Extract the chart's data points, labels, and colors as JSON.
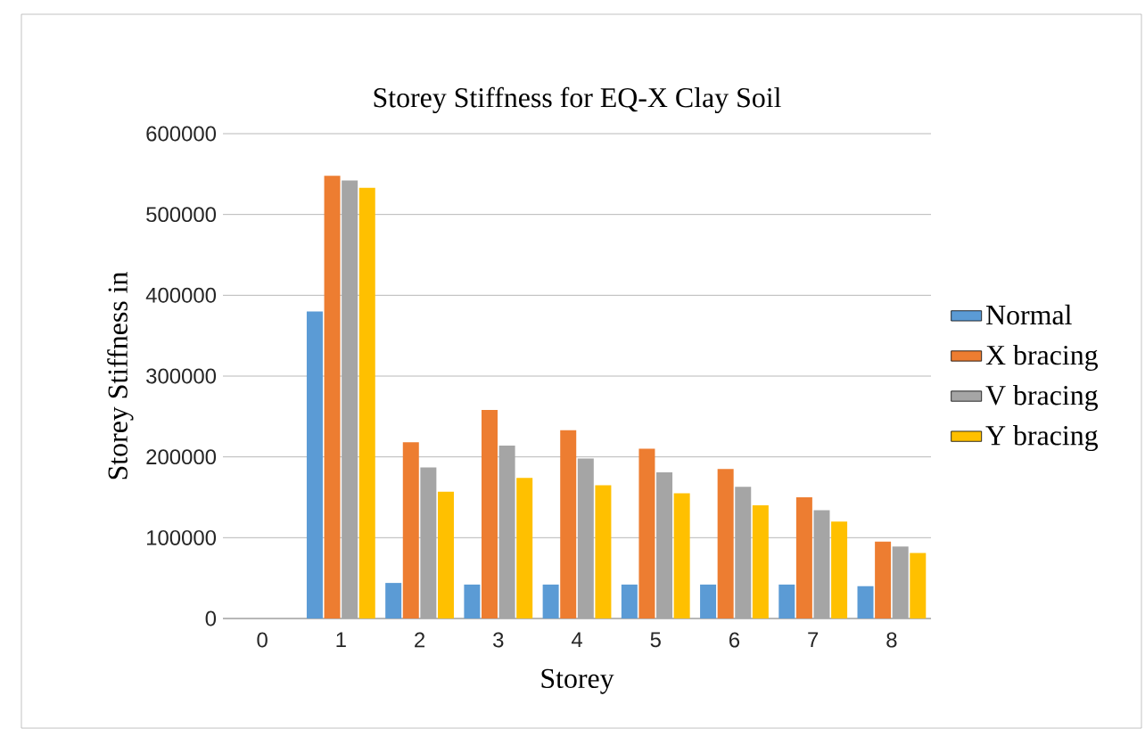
{
  "chart_data": {
    "type": "bar",
    "title": "Storey Stiffness for EQ-X Clay Soil",
    "xlabel": "Storey",
    "ylabel": "Storey Stiffness in",
    "categories": [
      "0",
      "1",
      "2",
      "3",
      "4",
      "5",
      "6",
      "7",
      "8"
    ],
    "series": [
      {
        "name": "Normal",
        "color": "#5b9bd5",
        "values": [
          null,
          380000,
          44000,
          42000,
          42000,
          42000,
          42000,
          42000,
          40000
        ]
      },
      {
        "name": "X bracing",
        "color": "#ed7d31",
        "values": [
          null,
          548000,
          218000,
          258000,
          233000,
          210000,
          185000,
          150000,
          95000
        ]
      },
      {
        "name": "V bracing",
        "color": "#a5a5a5",
        "values": [
          null,
          542000,
          187000,
          214000,
          198000,
          181000,
          163000,
          134000,
          89000
        ]
      },
      {
        "name": "Y bracing",
        "color": "#ffc000",
        "values": [
          null,
          533000,
          157000,
          174000,
          165000,
          155000,
          140000,
          120000,
          81000
        ]
      }
    ],
    "ylim": [
      0,
      600000
    ],
    "yticks": [
      0,
      100000,
      200000,
      300000,
      400000,
      500000,
      600000
    ],
    "grid": "y",
    "legend": "right"
  }
}
